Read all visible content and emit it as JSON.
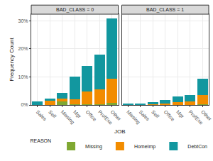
{
  "chart_data": {
    "type": "bar",
    "stacked": true,
    "grid": true,
    "legend": "bottom",
    "legend_title": "REASON",
    "x_label": "JOB",
    "y_label": "Frequency Count",
    "ylim": [
      0,
      32.3
    ],
    "yticks": [
      {
        "value": 0,
        "label": "0%"
      },
      {
        "value": 10,
        "label": "10%"
      },
      {
        "value": 20,
        "label": "20%"
      },
      {
        "value": 30,
        "label": "30%"
      }
    ],
    "facets": [
      {
        "title": "BAD_CLASS = 0",
        "categories": [
          "Sales",
          "Self",
          "Missing",
          "Mgr",
          "Office",
          "ProfExe",
          "Other"
        ],
        "series": [
          {
            "name": "Missing",
            "color": "#7fa832",
            "values": [
              0,
              0.1,
              1.2,
              0.3,
              0.3,
              0.3,
              0.8
            ]
          },
          {
            "name": "HomeImp",
            "color": "#f28c00",
            "values": [
              0.1,
              1.4,
              1.0,
              1.8,
              4.5,
              5.2,
              8.5
            ]
          },
          {
            "name": "DebtCon",
            "color": "#12979f",
            "values": [
              1.1,
              0.8,
              2.1,
              7.9,
              9.0,
              12.4,
              21.5
            ]
          }
        ]
      },
      {
        "title": "BAD_CLASS = 1",
        "categories": [
          "Missing",
          "Sales",
          "Self",
          "Office",
          "Mgr",
          "ProfExe",
          "Other"
        ],
        "series": [
          {
            "name": "Missing",
            "color": "#7fa832",
            "values": [
              0.1,
              0,
              0,
              0.1,
              0.1,
              0.1,
              0.3
            ]
          },
          {
            "name": "HomeImp",
            "color": "#f28c00",
            "values": [
              0,
              0.1,
              0.5,
              0.5,
              0.8,
              1.1,
              3.3
            ]
          },
          {
            "name": "DebtCon",
            "color": "#12979f",
            "values": [
              0.2,
              0.5,
              0.5,
              1.2,
              2.1,
              2.4,
              5.7
            ]
          }
        ]
      }
    ]
  }
}
